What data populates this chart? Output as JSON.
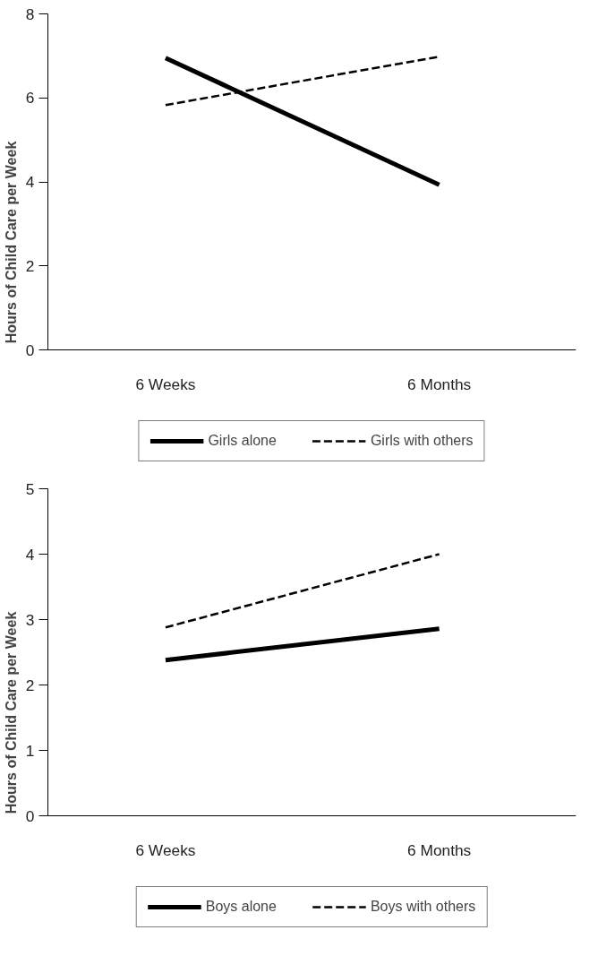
{
  "chart_data": [
    {
      "type": "line",
      "categories": [
        "6 Weeks",
        "6 Months"
      ],
      "ylabel": "Hours of Child Care per Week",
      "ylim": [
        0,
        8
      ],
      "yticks": [
        0,
        2,
        4,
        6,
        8
      ],
      "grid": false,
      "legend": "bottom",
      "marker": "none",
      "series": [
        {
          "name": "Girls alone",
          "color": "#000000",
          "values": [
            6.95,
            3.93
          ],
          "line_style": "solid"
        },
        {
          "name": "Girls with others",
          "color": "#000000",
          "values": [
            5.83,
            6.98
          ],
          "line_style": "dashed"
        }
      ]
    },
    {
      "type": "line",
      "categories": [
        "6 Weeks",
        "6 Months"
      ],
      "ylabel": "Hours of Child Care per Week",
      "ylim": [
        0,
        5
      ],
      "yticks": [
        0,
        1,
        2,
        3,
        4,
        5
      ],
      "grid": false,
      "legend": "bottom",
      "marker": "none",
      "series": [
        {
          "name": "Boys alone",
          "color": "#000000",
          "values": [
            2.38,
            2.86
          ],
          "line_style": "solid"
        },
        {
          "name": "Boys with others",
          "color": "#000000",
          "values": [
            2.88,
            4.0
          ],
          "line_style": "dashed"
        }
      ]
    }
  ]
}
